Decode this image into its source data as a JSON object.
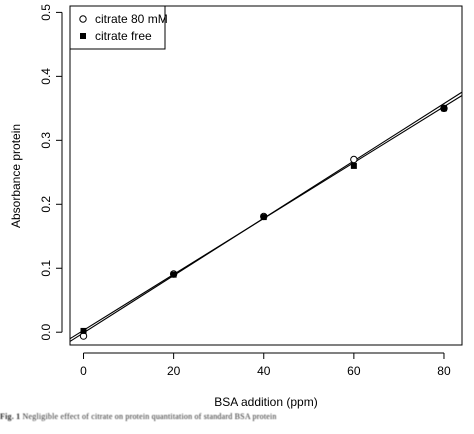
{
  "chart_data": {
    "type": "scatter",
    "xlabel": "BSA addition (ppm)",
    "ylabel": "Absorbance protein",
    "xlim": [
      -3,
      84
    ],
    "ylim": [
      -0.02,
      0.51
    ],
    "x_ticks": [
      "0",
      "20",
      "40",
      "60",
      "80"
    ],
    "y_ticks": [
      "0.0",
      "0.1",
      "0.2",
      "0.3",
      "0.4",
      "0.5"
    ],
    "grid": false,
    "legend_position": "top-left",
    "series": [
      {
        "name": "citrate 80 mM",
        "marker": "open-circle",
        "x": [
          0,
          20,
          40,
          60,
          80
        ],
        "y": [
          -0.006,
          0.091,
          0.181,
          0.27,
          0.35
        ],
        "fit": {
          "slope": 0.00448,
          "intercept": -0.001
        }
      },
      {
        "name": "citrate free",
        "marker": "filled-square",
        "x": [
          0,
          20,
          40,
          60,
          80
        ],
        "y": [
          0.002,
          0.09,
          0.18,
          0.26,
          0.35
        ],
        "fit": {
          "slope": 0.00437,
          "intercept": 0.003
        }
      }
    ]
  },
  "caption": {
    "label": "Fig. 1",
    "text": "Negligible effect of citrate on protein quantitation of standard BSA protein"
  }
}
